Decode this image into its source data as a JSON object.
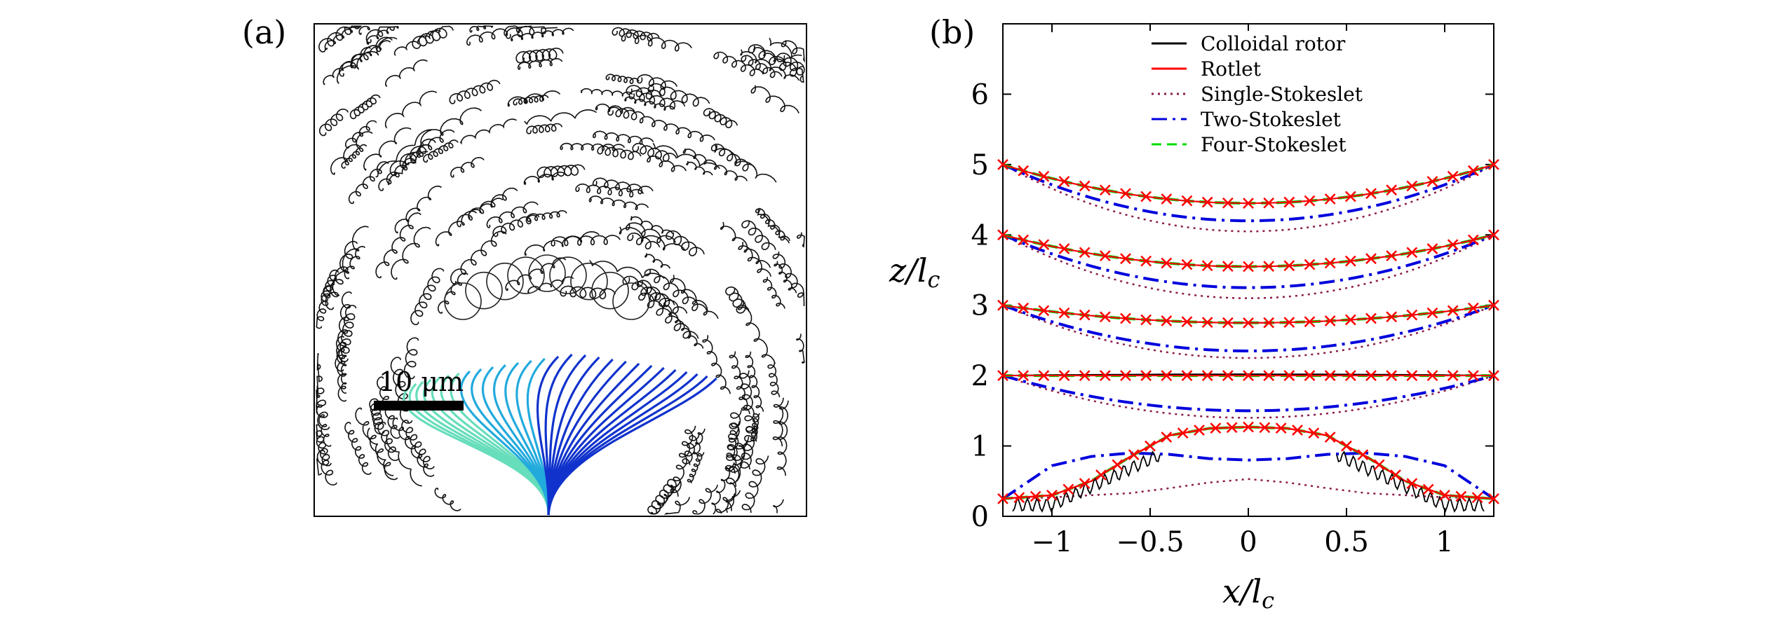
{
  "panels": {
    "a": {
      "label": "(a)",
      "scale_bar_label": "10 μm",
      "description_items": [
        "trajectory-field-micrograph",
        "colloidal-rotor-filament"
      ]
    },
    "b": {
      "label": "(b)"
    }
  },
  "chart_data": {
    "type": "line",
    "title": "",
    "xlabel": "x/l_c",
    "ylabel": "z/l_c",
    "xlim": [
      -1.25,
      1.25
    ],
    "ylim": [
      0,
      7
    ],
    "xticks": [
      -1,
      -0.5,
      0,
      0.5,
      1
    ],
    "xtick_labels": [
      "−1",
      "−0.5",
      "0",
      "0.5",
      "1"
    ],
    "yticks": [
      0,
      1,
      2,
      3,
      4,
      5,
      6
    ],
    "ytick_labels": [
      "0",
      "1",
      "2",
      "3",
      "4",
      "5",
      "6"
    ],
    "legend_position": "top-center",
    "legend": [
      {
        "name": "Colloidal rotor",
        "color": "#000000",
        "style": "solid"
      },
      {
        "name": "Rotlet",
        "color": "#ff0000",
        "style": "solid"
      },
      {
        "name": "Single-Stokeslet",
        "color": "#8b1a4a",
        "style": "dotted"
      },
      {
        "name": "Two-Stokeslet",
        "color": "#0000dd",
        "style": "dashdot"
      },
      {
        "name": "Four-Stokeslet",
        "color": "#00dd00",
        "style": "dashed"
      }
    ],
    "streamline_groups": [
      {
        "z_edge": 5.0,
        "colloidal_rotor_center": 4.45,
        "rotlet_center": 4.45,
        "four_stokeslet_center": 4.45,
        "two_stokeslet_center": 4.2,
        "single_stokeslet_center": 4.05
      },
      {
        "z_edge": 4.0,
        "colloidal_rotor_center": 3.55,
        "rotlet_center": 3.55,
        "four_stokeslet_center": 3.55,
        "two_stokeslet_center": 3.25,
        "single_stokeslet_center": 3.1
      },
      {
        "z_edge": 3.0,
        "colloidal_rotor_center": 2.75,
        "rotlet_center": 2.75,
        "four_stokeslet_center": 2.75,
        "two_stokeslet_center": 2.35,
        "single_stokeslet_center": 2.25
      },
      {
        "z_edge": 2.0,
        "colloidal_rotor_center": 2.02,
        "rotlet_center": 2.0,
        "four_stokeslet_center": 2.0,
        "two_stokeslet_center": 1.5,
        "single_stokeslet_center": 1.4
      }
    ],
    "lowest_streamline": {
      "x": [
        -1.25,
        -1.0,
        -0.8,
        -0.6,
        -0.4,
        -0.2,
        0,
        0.2,
        0.4,
        0.6,
        0.8,
        1.0,
        1.25
      ],
      "rotlet": [
        0.25,
        0.3,
        0.5,
        0.85,
        1.15,
        1.25,
        1.27,
        1.25,
        1.15,
        0.85,
        0.5,
        0.3,
        0.25
      ],
      "two_stokeslet": [
        0.25,
        0.72,
        0.85,
        0.9,
        0.88,
        0.82,
        0.8,
        0.82,
        0.88,
        0.9,
        0.85,
        0.72,
        0.25
      ],
      "single_stokeslet": [
        0.25,
        0.27,
        0.3,
        0.33,
        0.4,
        0.48,
        0.53,
        0.48,
        0.4,
        0.33,
        0.3,
        0.27,
        0.25
      ]
    }
  }
}
